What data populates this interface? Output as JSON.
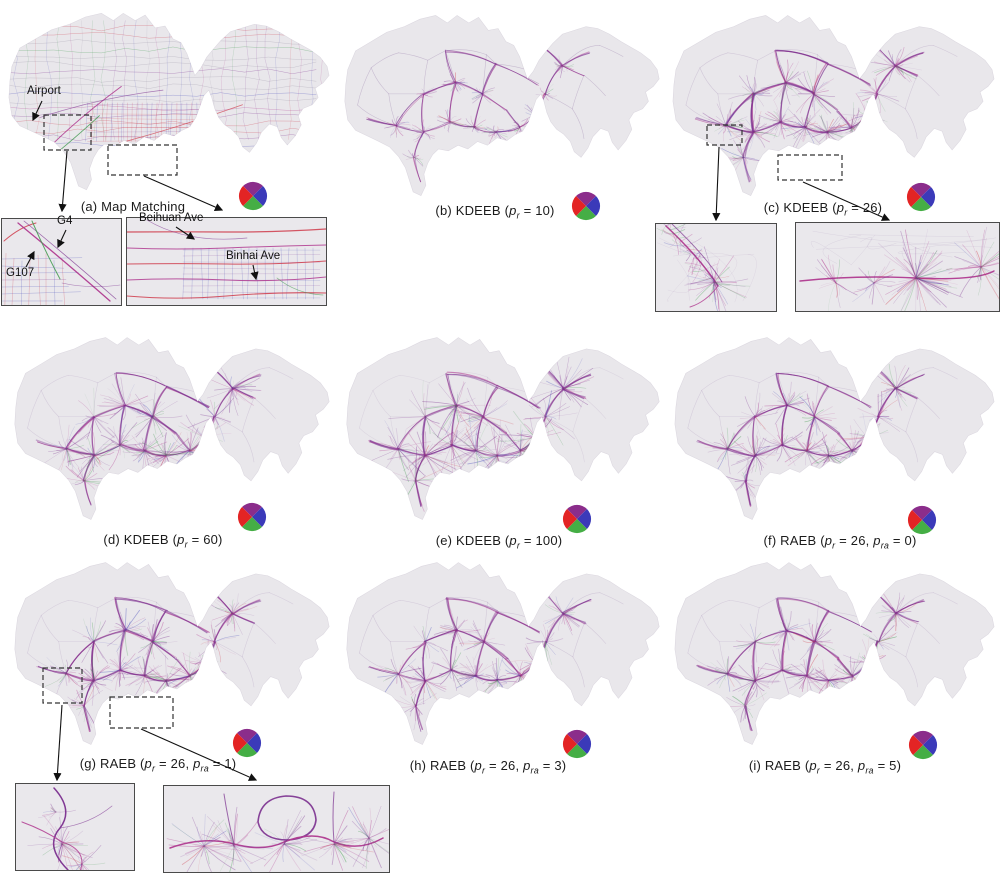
{
  "legend": {
    "meaning": "trajectory-direction color wheel",
    "colors": {
      "top": "#8b2d8b",
      "right": "#3b3ab9",
      "bottom": "#45ae45",
      "left": "#e32424"
    }
  },
  "map_colors": {
    "land": "#e9e7eb",
    "landEdge": "#dcd8e0",
    "purple": "#7b2f8f",
    "magenta": "#b03a90",
    "green": "#3f9a4d",
    "blue": "#4448b8",
    "red": "#cf3a4a",
    "gray": "#9d96a8",
    "web": "#a892b8"
  },
  "panels": {
    "a": {
      "caption": {
        "pre": "(a) Map Matching"
      },
      "annotations": {
        "airport": "Airport",
        "g4": "G4",
        "g107": "G107",
        "beihuan": "Beihuan Ave",
        "binhai": "Binhai Ave"
      }
    },
    "b": {
      "caption": {
        "pre": "(b) KDEEB (",
        "p1": "p",
        "s1": "r",
        "post": " = 10)"
      }
    },
    "c": {
      "caption": {
        "pre": "(c) KDEEB (",
        "p1": "p",
        "s1": "r",
        "post": " = 26)"
      }
    },
    "d": {
      "caption": {
        "pre": "(d) KDEEB (",
        "p1": "p",
        "s1": "r",
        "post": " = 60)"
      }
    },
    "e": {
      "caption": {
        "pre": "(e) KDEEB (",
        "p1": "p",
        "s1": "r",
        "post": " = 100)"
      }
    },
    "f": {
      "caption": {
        "pre": "(f) RAEB (",
        "p1": "p",
        "s1": "r",
        "mid": " = 26, ",
        "p2": "p",
        "s2": "ra",
        "post": " = 0)"
      }
    },
    "g": {
      "caption": {
        "pre": "(g) RAEB (",
        "p1": "p",
        "s1": "r",
        "mid": " = 26, ",
        "p2": "p",
        "s2": "ra",
        "post": " = 1)"
      }
    },
    "h": {
      "caption": {
        "pre": "(h) RAEB (",
        "p1": "p",
        "s1": "r",
        "mid": " = 26, ",
        "p2": "p",
        "s2": "ra",
        "post": " = 3)"
      }
    },
    "i": {
      "caption": {
        "pre": "(i) RAEB (",
        "p1": "p",
        "s1": "r",
        "mid": " = 26, ",
        "p2": "p",
        "s2": "ra",
        "post": " = 5)"
      }
    }
  }
}
